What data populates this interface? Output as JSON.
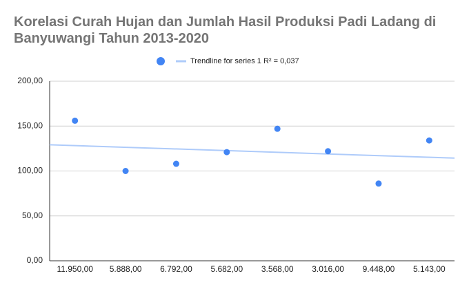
{
  "chart_data": {
    "type": "scatter",
    "title": "Korelasi Curah Hujan dan Jumlah Hasil Produksi Padi Ladang di Banyuwangi Tahun 2013-2020",
    "categories": [
      "11.950,00",
      "5.888,00",
      "6.792,00",
      "5.682,00",
      "3.568,00",
      "3.016,00",
      "9.448,00",
      "5.143,00"
    ],
    "series": [
      {
        "color": "#4285f4",
        "values": [
          156,
          100,
          108,
          121,
          147,
          122,
          86,
          134
        ]
      }
    ],
    "trendline": {
      "name": "Trendline for series 1 R² = 0,037",
      "color": "#aecbfa"
    },
    "ylim": [
      0,
      200
    ],
    "yticks": [
      {
        "value": 0,
        "label": "0,00"
      },
      {
        "value": 50,
        "label": "50,00"
      },
      {
        "value": 100,
        "label": "100,00"
      },
      {
        "value": 150,
        "label": "150,00"
      },
      {
        "value": 200,
        "label": "200,00"
      }
    ],
    "grid": true
  }
}
